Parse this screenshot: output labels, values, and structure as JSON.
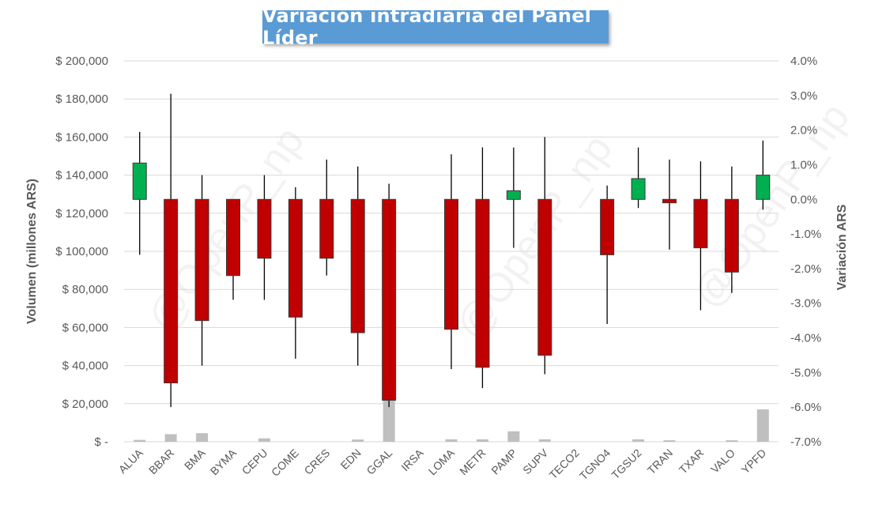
{
  "chart_data": {
    "type": "candlestick",
    "title": "Variación intradiaria del Panel Líder",
    "watermark": "@OpenP_np",
    "y_left": {
      "label": "Volumen (millones ARS)",
      "min": 0,
      "max": 200000,
      "ticks": [
        0,
        20000,
        40000,
        60000,
        80000,
        100000,
        120000,
        140000,
        160000,
        180000,
        200000
      ],
      "tick_labels": [
        "$ -",
        "$ 20,000",
        "$ 40,000",
        "$ 60,000",
        "$ 80,000",
        "$ 100,000",
        "$ 120,000",
        "$ 140,000",
        "$ 160,000",
        "$ 180,000",
        "$ 200,000"
      ]
    },
    "y_right": {
      "label": "Variación ARS",
      "min": -7.0,
      "max": 4.0,
      "ticks": [
        4.0,
        3.0,
        2.0,
        1.0,
        0.0,
        -1.0,
        -2.0,
        -3.0,
        -4.0,
        -5.0,
        -6.0,
        -7.0
      ],
      "tick_labels": [
        "4.0%",
        "3.0%",
        "2.0%",
        "1.0%",
        "0.0%",
        "-1.0%",
        "-2.0%",
        "-3.0%",
        "-4.0%",
        "-5.0%",
        "-6.0%",
        "-7.0%"
      ]
    },
    "grid": true,
    "colors": {
      "up": "#00b050",
      "down": "#c00000",
      "volume": "#bfbfbf",
      "wick": "#000000",
      "grid": "#d9d9d9",
      "axis_text": "#595959"
    },
    "categories": [
      "ALUA",
      "BBAR",
      "BMA",
      "BYMA",
      "CEPU",
      "COME",
      "CRES",
      "EDN",
      "GGAL",
      "IRSA",
      "LOMA",
      "METR",
      "PAMP",
      "SUPV",
      "TECO2",
      "TGNO4",
      "TGSU2",
      "TRAN",
      "TXAR",
      "VALO",
      "YPFD"
    ],
    "open": [
      0,
      0,
      0,
      0,
      0,
      0,
      0,
      0,
      0,
      0,
      0,
      0,
      0,
      0,
      0,
      0,
      0,
      0,
      0,
      0,
      0
    ],
    "close": [
      1.05,
      -5.3,
      -3.5,
      -2.2,
      -1.7,
      -3.4,
      -1.7,
      -3.85,
      -5.8,
      0,
      -3.75,
      -4.85,
      0.25,
      -4.5,
      0,
      -1.6,
      0.6,
      -0.1,
      -1.4,
      -2.1,
      0.7
    ],
    "high": [
      1.95,
      3.05,
      0.7,
      0,
      0.7,
      0.35,
      1.15,
      0.95,
      0.45,
      0,
      1.3,
      1.5,
      1.5,
      1.8,
      0,
      0.4,
      1.5,
      1.15,
      1.1,
      0.95,
      1.7
    ],
    "low": [
      -1.6,
      -6.0,
      -4.8,
      -2.9,
      -2.9,
      -4.6,
      -2.2,
      -4.8,
      -6.0,
      0,
      -4.9,
      -5.45,
      -1.4,
      -5.05,
      0,
      -3.6,
      -0.25,
      -1.45,
      -3.2,
      -2.7,
      -0.3
    ],
    "volume": [
      1000,
      4000,
      4500,
      0,
      1800,
      0,
      0,
      1200,
      22000,
      0,
      1300,
      1300,
      5500,
      1300,
      0,
      0,
      1300,
      800,
      0,
      800,
      17000
    ]
  }
}
